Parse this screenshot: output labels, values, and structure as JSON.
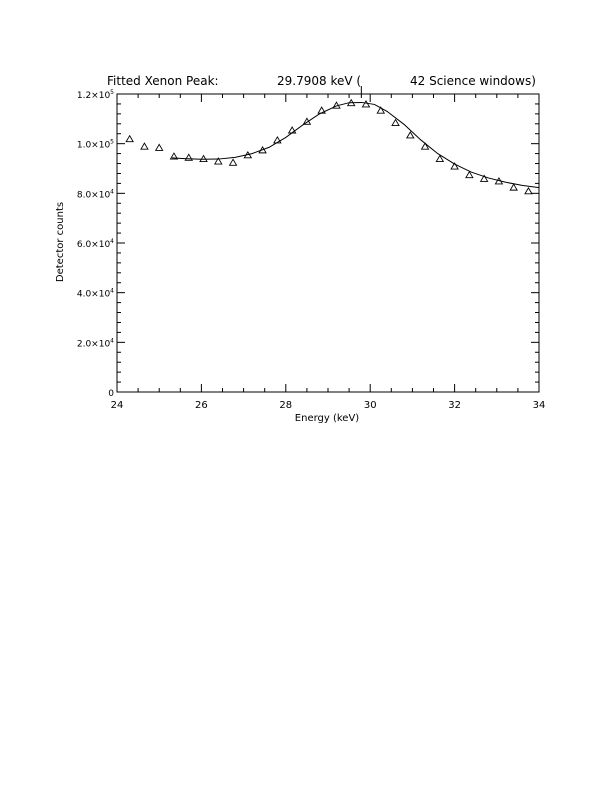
{
  "chart_data": {
    "type": "scatter",
    "title": {
      "label": "Fitted Xenon Peak:",
      "value": "29.7908 keV (",
      "windows": "42 Science windows)"
    },
    "xlabel": "Energy (keV)",
    "ylabel": "Detector counts",
    "xlim": [
      24,
      34
    ],
    "ylim": [
      0,
      120000
    ],
    "xticks": [
      {
        "value": 24,
        "label": "24"
      },
      {
        "value": 26,
        "label": "26"
      },
      {
        "value": 28,
        "label": "28"
      },
      {
        "value": 30,
        "label": "30"
      },
      {
        "value": 32,
        "label": "32"
      },
      {
        "value": 34,
        "label": "34"
      }
    ],
    "yticks": [
      {
        "value": 0,
        "mant": "0",
        "exp": ""
      },
      {
        "value": 20000,
        "mant": "2.0×10",
        "exp": "4"
      },
      {
        "value": 40000,
        "mant": "4.0×10",
        "exp": "4"
      },
      {
        "value": 60000,
        "mant": "6.0×10",
        "exp": "4"
      },
      {
        "value": 80000,
        "mant": "8.0×10",
        "exp": "4"
      },
      {
        "value": 100000,
        "mant": "1.0×10",
        "exp": "5"
      },
      {
        "value": 120000,
        "mant": "1.2×10",
        "exp": "5"
      }
    ],
    "peak_marker_x": 29.79,
    "grid": false,
    "series": [
      {
        "marker": "triangle",
        "x": [
          24.3,
          24.65,
          25.0,
          25.35,
          25.7,
          26.05,
          26.4,
          26.75,
          27.1,
          27.45,
          27.8,
          28.15,
          28.5,
          28.85,
          29.2,
          29.55,
          29.9,
          30.25,
          30.6,
          30.95,
          31.3,
          31.65,
          32.0,
          32.35,
          32.7,
          33.05,
          33.4,
          33.75
        ],
        "y": [
          102000,
          99000,
          98500,
          95000,
          94500,
          94000,
          93000,
          92500,
          95500,
          97500,
          101500,
          105500,
          109000,
          113500,
          115500,
          116500,
          116000,
          113500,
          108500,
          103500,
          99000,
          94000,
          91000,
          87500,
          86000,
          85000,
          82500,
          81000
        ]
      },
      {
        "marker": "line",
        "x": [
          25.3,
          25.6,
          26.0,
          26.4,
          26.8,
          27.2,
          27.6,
          28.0,
          28.4,
          28.8,
          29.2,
          29.5,
          29.8,
          30.1,
          30.4,
          30.8,
          31.2,
          31.6,
          32.0,
          32.4,
          32.8,
          33.2,
          33.6,
          34.0
        ],
        "y": [
          94300,
          94000,
          93700,
          93800,
          94500,
          96000,
          98500,
          102500,
          107500,
          112000,
          115200,
          116500,
          116600,
          115800,
          113000,
          107800,
          101500,
          96000,
          91800,
          88500,
          86200,
          84500,
          83200,
          82300
        ]
      }
    ]
  }
}
